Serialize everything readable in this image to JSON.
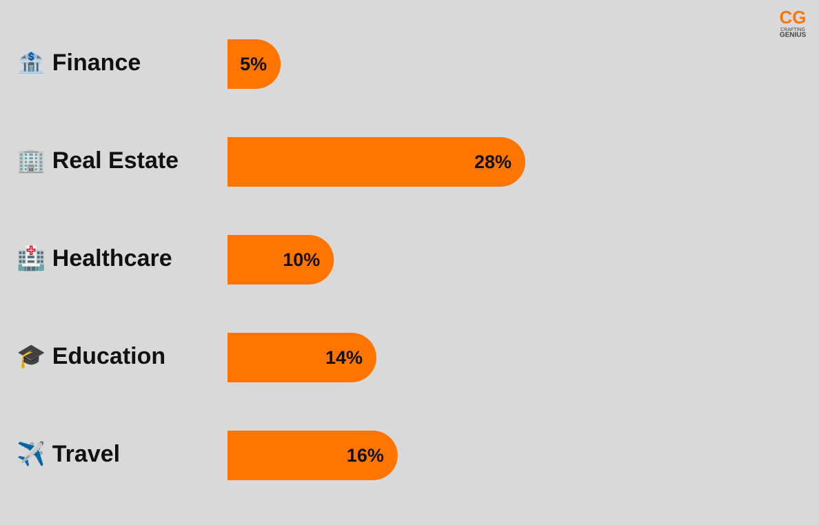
{
  "chart_data": {
    "type": "bar",
    "orientation": "horizontal",
    "categories": [
      "🏦 Finance",
      "🏢 Real Estate",
      "🏥 Healthcare",
      "🎓 Education",
      "✈️ Travel"
    ],
    "values": [
      5,
      28,
      10,
      14,
      16
    ],
    "value_labels": [
      "5%",
      "28%",
      "10%",
      "14%",
      "16%"
    ],
    "color": "#ff7500",
    "logo": {
      "mark": "CG",
      "line1": "CRAFTING",
      "line2": "GENIUS"
    }
  }
}
